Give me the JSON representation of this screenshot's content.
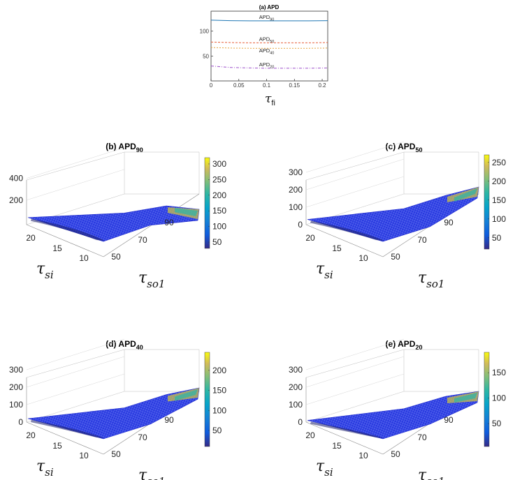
{
  "chart_data": [
    {
      "id": "a",
      "type": "line",
      "title": "(a) APD",
      "xlabel_symbol": "τ",
      "xlabel_sub": "fi",
      "ylabel": "",
      "xlim": [
        0,
        0.21
      ],
      "ylim": [
        0,
        140
      ],
      "xticks": [
        "0",
        "0.05",
        "0.1",
        "0.15",
        "0.2"
      ],
      "yticks": [
        "50",
        "100"
      ],
      "x": [
        0,
        0.035,
        0.07,
        0.105,
        0.14,
        0.175,
        0.21
      ],
      "series": [
        {
          "name": "APD90",
          "base": "APD",
          "sub": "90",
          "color": "#1f77b4",
          "dash": "",
          "values": [
            122,
            121,
            120.5,
            120.5,
            120.5,
            120.5,
            121
          ]
        },
        {
          "name": "APD50",
          "base": "APD",
          "sub": "50",
          "color": "#e8613c",
          "dash": "3,2",
          "values": [
            78,
            77,
            76.5,
            76.5,
            76.5,
            76.5,
            77
          ]
        },
        {
          "name": "APD40",
          "base": "APD",
          "sub": "40",
          "color": "#e6a23c",
          "dash": "2,2",
          "values": [
            67,
            66,
            65.5,
            65.5,
            65.5,
            65.5,
            66
          ]
        },
        {
          "name": "APD20",
          "base": "APD",
          "sub": "20",
          "color": "#9b4dca",
          "dash": "4,2,1,2",
          "values": [
            30,
            27,
            26,
            25.5,
            25.5,
            25.5,
            26
          ]
        }
      ]
    },
    {
      "id": "b",
      "type": "surface",
      "title": "(b) APD",
      "title_sub": "90",
      "zticks": [
        "200",
        "400"
      ],
      "zlim": [
        0,
        450
      ],
      "colorbar_ticks": [
        "50",
        "100",
        "150",
        "200",
        "250",
        "300"
      ],
      "colorbar_range": [
        30,
        320
      ],
      "x_symbol": "τ",
      "x_sub": "si",
      "x_ticks": [
        "20",
        "15",
        "10"
      ],
      "y_symbol": "τ",
      "y_sub": "so1",
      "y_ticks": [
        "50",
        "70",
        "90"
      ],
      "z_front_left": 40,
      "z_back": 30,
      "z_right": 70,
      "z_tip": 90
    },
    {
      "id": "c",
      "type": "surface",
      "title": "(c) APD",
      "title_sub": "50",
      "zticks": [
        "0",
        "100",
        "200",
        "300"
      ],
      "zlim": [
        0,
        320
      ],
      "colorbar_ticks": [
        "50",
        "100",
        "150",
        "200",
        "250"
      ],
      "colorbar_range": [
        20,
        270
      ],
      "x_symbol": "τ",
      "x_sub": "si",
      "x_ticks": [
        "20",
        "15",
        "10"
      ],
      "y_symbol": "τ",
      "y_sub": "so1",
      "y_ticks": [
        "50",
        "70",
        "90"
      ],
      "z_front_left": 30,
      "z_back": 60,
      "z_right": 120,
      "z_tip": 200
    },
    {
      "id": "d",
      "type": "surface",
      "title": "(d) APD",
      "title_sub": "40",
      "zticks": [
        "0",
        "100",
        "200",
        "300"
      ],
      "zlim": [
        0,
        320
      ],
      "colorbar_ticks": [
        "50",
        "100",
        "150",
        "200"
      ],
      "colorbar_range": [
        10,
        245
      ],
      "x_symbol": "τ",
      "x_sub": "si",
      "x_ticks": [
        "20",
        "15",
        "10"
      ],
      "y_symbol": "τ",
      "y_sub": "so1",
      "y_ticks": [
        "50",
        "70",
        "90"
      ],
      "z_front_left": 20,
      "z_back": 50,
      "z_right": 110,
      "z_tip": 180
    },
    {
      "id": "e",
      "type": "surface",
      "title": "(e) APD",
      "title_sub": "20",
      "zticks": [
        "0",
        "100",
        "200",
        "300"
      ],
      "zlim": [
        0,
        320
      ],
      "colorbar_ticks": [
        "50",
        "100",
        "150"
      ],
      "colorbar_range": [
        5,
        190
      ],
      "x_symbol": "τ",
      "x_sub": "si",
      "x_ticks": [
        "20",
        "15",
        "10"
      ],
      "y_symbol": "τ",
      "y_sub": "so1",
      "y_ticks": [
        "50",
        "70",
        "90"
      ],
      "z_front_left": 10,
      "z_back": 45,
      "z_right": 100,
      "z_tip": 160
    }
  ]
}
